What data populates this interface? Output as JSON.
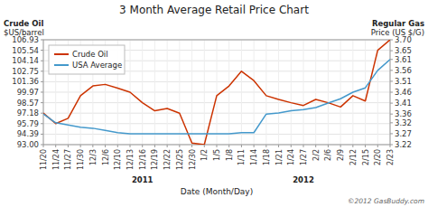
{
  "chart_data": {
    "type": "line",
    "title": "3 Month Average Retail Price Chart",
    "ylabel": [
      "Crude Oil",
      "$US/barrel"
    ],
    "y2label": [
      "Regular Gas",
      "Price (US $/G)"
    ],
    "xlabel": "Date (Month/Day)",
    "copyright": "©2012 GasBuddy.com",
    "categories": [
      "11/20",
      "11/24",
      "11/27",
      "11/30",
      "12/3",
      "12/6",
      "12/10",
      "12/13",
      "12/16",
      "12/19",
      "12/22",
      "12/25",
      "12/30",
      "1/2",
      "1/5",
      "1/8",
      "1/11",
      "1/14",
      "1/18",
      "1/21",
      "1/24",
      "1/27",
      "2/2",
      "2/6",
      "2/9",
      "2/12",
      "2/15",
      "2/20",
      "2/23"
    ],
    "series": [
      {
        "name": "Crude Oil",
        "color": "#cc3300",
        "values": [
          97.18,
          95.79,
          96.5,
          99.5,
          100.8,
          101.0,
          100.5,
          99.97,
          98.57,
          97.5,
          97.8,
          97.18,
          93.2,
          93.0,
          99.5,
          100.8,
          102.75,
          101.5,
          99.5,
          99.0,
          98.57,
          98.2,
          99.0,
          98.57,
          98.0,
          99.5,
          98.8,
          105.54,
          106.93
        ]
      },
      {
        "name": "USA Average",
        "color": "#4499cc",
        "axis": "y2",
        "values": [
          3.36,
          3.32,
          3.31,
          3.3,
          3.295,
          3.285,
          3.275,
          3.27,
          3.27,
          3.27,
          3.27,
          3.27,
          3.27,
          3.27,
          3.27,
          3.27,
          3.275,
          3.275,
          3.36,
          3.365,
          3.375,
          3.38,
          3.39,
          3.41,
          3.43,
          3.46,
          3.48,
          3.56,
          3.61
        ]
      }
    ],
    "ylim": [
      93.0,
      106.93
    ],
    "yticks": [
      {
        "value": 93.0,
        "label": "93.00"
      },
      94.39,
      95.79,
      97.18,
      98.57,
      99.97,
      101.36,
      102.75,
      104.14,
      105.54,
      106.93
    ],
    "y2lim": [
      3.22,
      3.7
    ],
    "y2ticks": [
      3.22,
      3.27,
      3.32,
      3.36,
      3.41,
      3.46,
      3.51,
      3.56,
      3.61,
      3.65,
      {
        "value": 3.7,
        "label": "3.70"
      }
    ],
    "grid": true,
    "legend": "upper left",
    "annotations": [
      {
        "text": "2011",
        "x": "12/16"
      },
      {
        "text": "2012",
        "x": "1/27"
      }
    ]
  }
}
